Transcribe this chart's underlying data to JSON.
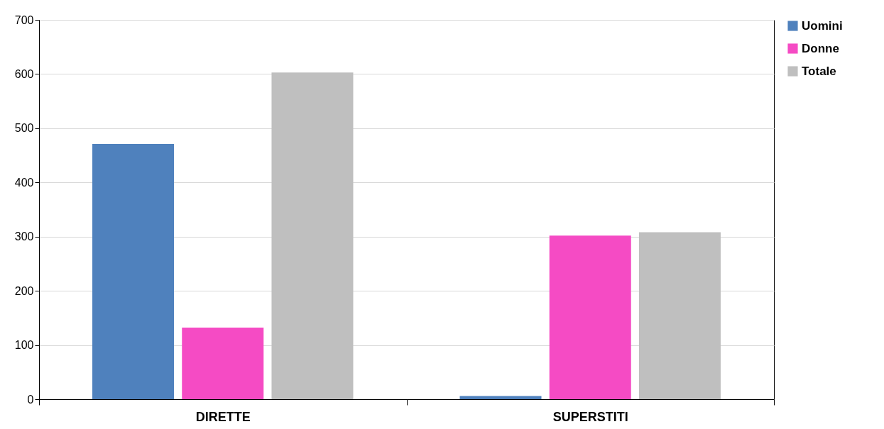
{
  "chart_data": {
    "type": "bar",
    "categories": [
      "DIRETTE",
      "SUPERSTITI"
    ],
    "series": [
      {
        "name": "Uomini",
        "color": "#4f81bd",
        "values": [
          471,
          6
        ]
      },
      {
        "name": "Donne",
        "color": "#f54bc4",
        "values": [
          132,
          302
        ]
      },
      {
        "name": "Totale",
        "color": "#bfbfbf",
        "values": [
          603,
          308
        ]
      }
    ],
    "ylim": [
      0,
      700
    ],
    "yticks": [
      0,
      100,
      200,
      300,
      400,
      500,
      600,
      700
    ],
    "grid": "y",
    "legend": "right"
  }
}
